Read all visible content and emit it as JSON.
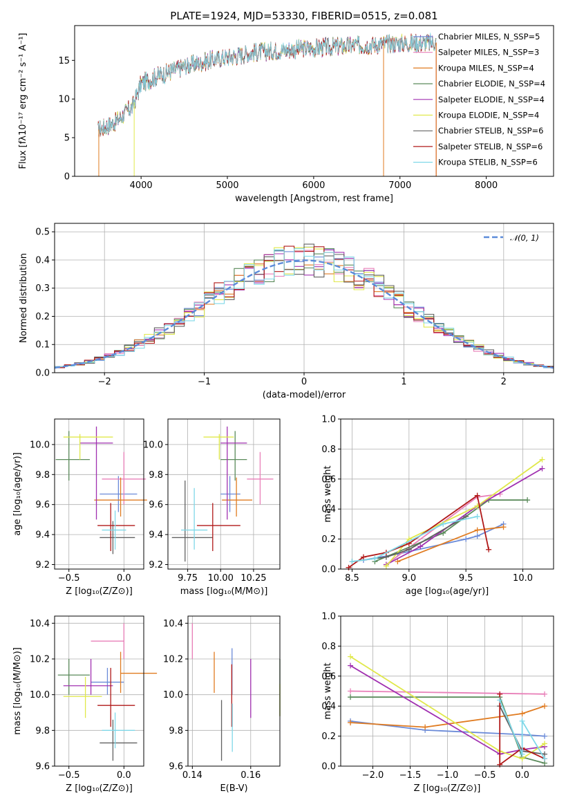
{
  "title": "PLATE=1924, MJD=53330, FIBERID=0515, z=0.081",
  "colors": {
    "c_miles": "#6a8ad8",
    "s_miles": "#e87fb8",
    "k_miles": "#e07b20",
    "c_elodie": "#5a8a5a",
    "s_elodie": "#a030b0",
    "k_elodie": "#e0e84a",
    "c_stelib": "#606060",
    "s_stelib": "#b01818",
    "k_stelib": "#7fd8e8",
    "normal": "#5b8bd9"
  },
  "chart_data": [
    {
      "id": "spectrum",
      "type": "line",
      "title": "PLATE=1924, MJD=53330, FIBERID=0515, z=0.081",
      "xlabel": "wavelength [Angstrom, rest frame]",
      "ylabel": "Flux [fλ10⁻¹⁷ erg cm⁻² s⁻¹ A⁻¹]",
      "xlim": [
        3230,
        8780
      ],
      "ylim": [
        0,
        19.5
      ],
      "xticks": [
        "4000",
        "5000",
        "6000",
        "7000",
        "8000"
      ],
      "yticks": [
        "0",
        "5",
        "10",
        "15"
      ],
      "grid": false,
      "legend_position": "top-right",
      "series": [
        {
          "name": "Chabrier MILES, N_SSP=5",
          "color_key": "c_miles"
        },
        {
          "name": "Salpeter MILES, N_SSP=3",
          "color_key": "s_miles"
        },
        {
          "name": "Kroupa MILES, N_SSP=4",
          "color_key": "k_miles"
        },
        {
          "name": "Chabrier ELODIE, N_SSP=4",
          "color_key": "c_elodie"
        },
        {
          "name": "Salpeter ELODIE, N_SSP=4",
          "color_key": "s_elodie"
        },
        {
          "name": "Kroupa ELODIE, N_SSP=4",
          "color_key": "k_elodie"
        },
        {
          "name": "Chabrier STELIB, N_SSP=6",
          "color_key": "c_stelib"
        },
        {
          "name": "Salpeter STELIB, N_SSP=6",
          "color_key": "s_stelib"
        },
        {
          "name": "Kroupa STELIB, N_SSP=6",
          "color_key": "k_stelib"
        }
      ],
      "continuum": {
        "x": [
          3500,
          3700,
          3900,
          4000,
          4200,
          4500,
          4800,
          5000,
          5300,
          5600,
          6000,
          6300,
          6600,
          7000,
          7400,
          7700
        ],
        "y": [
          6.0,
          7.0,
          9.0,
          12.0,
          13.0,
          14.2,
          15.0,
          15.4,
          16.0,
          16.3,
          16.6,
          16.8,
          17.0,
          17.2,
          17.3,
          17.3
        ]
      }
    },
    {
      "id": "residual-histogram",
      "type": "bar",
      "xlabel": "(data-model)/error",
      "ylabel": "Normed distribution",
      "xlim": [
        -2.5,
        2.5
      ],
      "ylim": [
        0,
        0.53
      ],
      "xticks": [
        "−2",
        "−1",
        "0",
        "1",
        "2"
      ],
      "yticks": [
        "0.0",
        "0.1",
        "0.2",
        "0.3",
        "0.4",
        "0.5"
      ],
      "grid": true,
      "legend_position": "top-right",
      "legend": "𝒩(0, 1)",
      "bin_width": 0.1
    },
    {
      "id": "age-vs-metallicity",
      "type": "scatter",
      "xlabel": "Z [log₁₀(Z/Z⊙)]",
      "ylabel": "age  [log₁₀(age/yr)]",
      "xlim": [
        -0.63,
        0.18
      ],
      "ylim": [
        9.17,
        10.17
      ],
      "xticks": [
        "−0.5",
        "0.0"
      ],
      "yticks": [
        "9.2",
        "9.4",
        "9.6",
        "9.8",
        "10.0"
      ],
      "grid": true,
      "points": [
        {
          "color_key": "c_miles",
          "x": -0.05,
          "y": 9.67,
          "xlo": -0.22,
          "xhi": 0.12,
          "ylo": 9.55,
          "yhi": 9.79
        },
        {
          "color_key": "s_miles",
          "x": 0.0,
          "y": 9.77,
          "xlo": -0.2,
          "xhi": 0.2,
          "ylo": 9.6,
          "yhi": 9.95
        },
        {
          "color_key": "k_miles",
          "x": -0.03,
          "y": 9.63,
          "xlo": -0.27,
          "xhi": 0.21,
          "ylo": 9.52,
          "yhi": 9.78
        },
        {
          "color_key": "c_elodie",
          "x": -0.5,
          "y": 9.9,
          "xlo": -0.62,
          "xhi": -0.31,
          "ylo": 9.76,
          "yhi": 10.09
        },
        {
          "color_key": "s_elodie",
          "x": -0.25,
          "y": 10.01,
          "xlo": -0.4,
          "xhi": -0.1,
          "ylo": 9.5,
          "yhi": 10.12
        },
        {
          "color_key": "k_elodie",
          "x": -0.4,
          "y": 10.05,
          "xlo": -0.55,
          "xhi": -0.1,
          "ylo": 9.9,
          "yhi": 10.07
        },
        {
          "color_key": "c_stelib",
          "x": -0.1,
          "y": 9.38,
          "xlo": -0.22,
          "xhi": 0.1,
          "ylo": 9.27,
          "yhi": 9.49
        },
        {
          "color_key": "s_stelib",
          "x": -0.12,
          "y": 9.46,
          "xlo": -0.24,
          "xhi": 0.1,
          "ylo": 9.29,
          "yhi": 9.61
        },
        {
          "color_key": "k_stelib",
          "x": -0.08,
          "y": 9.43,
          "xlo": -0.2,
          "xhi": 0.02,
          "ylo": 9.3,
          "yhi": 9.56
        }
      ]
    },
    {
      "id": "age-vs-mass",
      "type": "scatter",
      "xlabel": "mass [log₁₀(M/M⊙)]",
      "ylabel": "",
      "xlim": [
        9.6,
        10.45
      ],
      "ylim": [
        9.17,
        10.17
      ],
      "xticks": [
        "9.75",
        "10.00",
        "10.25"
      ],
      "yticks": [
        "9.2",
        "9.4",
        "9.6",
        "9.8",
        "10.0"
      ],
      "grid": true,
      "points": [
        {
          "color_key": "c_miles",
          "x": 10.07,
          "y": 9.67,
          "xlo": 10.0,
          "xhi": 10.15,
          "ylo": 9.55,
          "yhi": 9.79
        },
        {
          "color_key": "s_miles",
          "x": 10.3,
          "y": 9.77,
          "xlo": 10.2,
          "xhi": 10.4,
          "ylo": 9.6,
          "yhi": 9.95
        },
        {
          "color_key": "k_miles",
          "x": 10.12,
          "y": 9.63,
          "xlo": 10.01,
          "xhi": 10.24,
          "ylo": 9.52,
          "yhi": 9.78
        },
        {
          "color_key": "c_elodie",
          "x": 10.11,
          "y": 9.9,
          "xlo": 10.0,
          "xhi": 10.2,
          "ylo": 9.76,
          "yhi": 10.09
        },
        {
          "color_key": "s_elodie",
          "x": 10.05,
          "y": 10.01,
          "xlo": 10.0,
          "xhi": 10.2,
          "ylo": 9.5,
          "yhi": 10.12
        },
        {
          "color_key": "k_elodie",
          "x": 9.99,
          "y": 10.05,
          "xlo": 9.87,
          "xhi": 10.1,
          "ylo": 9.9,
          "yhi": 10.07
        },
        {
          "color_key": "c_stelib",
          "x": 9.73,
          "y": 9.38,
          "xlo": 9.63,
          "xhi": 9.94,
          "ylo": 9.22,
          "yhi": 9.76
        },
        {
          "color_key": "s_stelib",
          "x": 9.94,
          "y": 9.46,
          "xlo": 9.82,
          "xhi": 10.15,
          "ylo": 9.29,
          "yhi": 9.61
        },
        {
          "color_key": "k_stelib",
          "x": 9.8,
          "y": 9.43,
          "xlo": 9.7,
          "xhi": 9.9,
          "ylo": 9.3,
          "yhi": 9.71
        }
      ]
    },
    {
      "id": "mass-weight-vs-age",
      "type": "line",
      "xlabel": "age  [log₁₀(age/yr)]",
      "ylabel": "mass weight",
      "xlim": [
        8.4,
        10.27
      ],
      "ylim": [
        0,
        1
      ],
      "xticks": [
        "8.5",
        "9.0",
        "9.5",
        "10.0"
      ],
      "yticks": [
        "0.0",
        "0.2",
        "0.4",
        "0.6",
        "0.8",
        "1.0"
      ],
      "grid": true,
      "series": [
        {
          "color_key": "c_miles",
          "x": [
            8.6,
            8.9,
            9.5,
            9.6,
            9.83
          ],
          "y": [
            0.06,
            0.1,
            0.2,
            0.22,
            0.3
          ]
        },
        {
          "color_key": "s_miles",
          "x": [
            8.8,
            9.6,
            9.8
          ],
          "y": [
            0.03,
            0.48,
            0.5
          ]
        },
        {
          "color_key": "k_miles",
          "x": [
            8.9,
            9.6,
            9.83
          ],
          "y": [
            0.05,
            0.26,
            0.28
          ]
        },
        {
          "color_key": "c_elodie",
          "x": [
            8.7,
            9.3,
            9.7,
            10.04
          ],
          "y": [
            0.05,
            0.24,
            0.46,
            0.46
          ]
        },
        {
          "color_key": "s_elodie",
          "x": [
            8.8,
            9.1,
            9.6,
            10.17
          ],
          "y": [
            0.03,
            0.15,
            0.42,
            0.67
          ]
        },
        {
          "color_key": "k_elodie",
          "x": [
            8.8,
            9.0,
            9.6,
            10.17
          ],
          "y": [
            0.02,
            0.2,
            0.42,
            0.73
          ]
        },
        {
          "color_key": "c_stelib",
          "x": [
            8.5,
            8.8,
            9.0,
            9.5
          ],
          "y": [
            0.05,
            0.08,
            0.13,
            0.35
          ]
        },
        {
          "color_key": "s_stelib",
          "x": [
            8.47,
            8.6,
            8.8,
            9.0,
            9.6,
            9.7
          ],
          "y": [
            0.01,
            0.08,
            0.11,
            0.17,
            0.49,
            0.13
          ]
        },
        {
          "color_key": "k_stelib",
          "x": [
            8.5,
            8.7,
            9.3,
            9.6
          ],
          "y": [
            0.05,
            0.07,
            0.3,
            0.35
          ]
        }
      ]
    },
    {
      "id": "mass-vs-metallicity",
      "type": "scatter",
      "xlabel": "Z [log₁₀(Z/Z⊙)]",
      "ylabel": "mass [log₁₀(M/M⊙)]",
      "xlim": [
        -0.63,
        0.18
      ],
      "ylim": [
        9.6,
        10.44
      ],
      "xticks": [
        "−0.5",
        "0.0"
      ],
      "yticks": [
        "9.6",
        "9.8",
        "10.0",
        "10.2",
        "10.4"
      ],
      "grid": true,
      "points": [
        {
          "color_key": "c_miles",
          "x": -0.15,
          "y": 10.07,
          "xlo": -0.3,
          "xhi": 0.0,
          "ylo": 10.0,
          "yhi": 10.15
        },
        {
          "color_key": "s_miles",
          "x": 0.0,
          "y": 10.3,
          "xlo": -0.3,
          "xhi": 0.0,
          "ylo": 10.2,
          "yhi": 10.4
        },
        {
          "color_key": "k_miles",
          "x": -0.03,
          "y": 10.12,
          "xlo": -0.03,
          "xhi": 0.3,
          "ylo": 10.01,
          "yhi": 10.24
        },
        {
          "color_key": "c_elodie",
          "x": -0.5,
          "y": 10.11,
          "xlo": -0.6,
          "xhi": -0.31,
          "ylo": 10.0,
          "yhi": 10.2
        },
        {
          "color_key": "s_elodie",
          "x": -0.3,
          "y": 10.05,
          "xlo": -0.55,
          "xhi": -0.1,
          "ylo": 10.0,
          "yhi": 10.2
        },
        {
          "color_key": "k_elodie",
          "x": -0.35,
          "y": 9.99,
          "xlo": -0.55,
          "xhi": -0.2,
          "ylo": 9.87,
          "yhi": 10.1
        },
        {
          "color_key": "c_stelib",
          "x": -0.1,
          "y": 9.73,
          "xlo": -0.22,
          "xhi": 0.12,
          "ylo": 9.63,
          "yhi": 9.86
        },
        {
          "color_key": "s_stelib",
          "x": -0.12,
          "y": 9.94,
          "xlo": -0.24,
          "xhi": 0.1,
          "ylo": 9.82,
          "yhi": 10.15
        },
        {
          "color_key": "k_stelib",
          "x": -0.08,
          "y": 9.8,
          "xlo": -0.2,
          "xhi": 0.1,
          "ylo": 9.7,
          "yhi": 9.9
        }
      ]
    },
    {
      "id": "mass-vs-extinction",
      "type": "scatter",
      "xlabel": "E(B-V)",
      "ylabel": "",
      "xlim": [
        0.1385,
        0.17
      ],
      "ylim": [
        9.6,
        10.44
      ],
      "xticks": [
        "0.14",
        "0.16"
      ],
      "yticks": [
        "9.6",
        "9.8",
        "10.0",
        "10.2",
        "10.4"
      ],
      "grid": true,
      "points": [
        {
          "color_key": "c_miles",
          "x": 0.1536,
          "y": 10.07,
          "ylo": 10.0,
          "yhi": 10.26
        },
        {
          "color_key": "s_miles",
          "x": 0.14,
          "y": 10.3,
          "ylo": 10.2,
          "yhi": 10.4
        },
        {
          "color_key": "k_miles",
          "x": 0.1475,
          "y": 10.12,
          "ylo": 10.01,
          "yhi": 10.24
        },
        {
          "color_key": "c_elodie",
          "x": 0.17,
          "y": 9.97,
          "ylo": 9.88,
          "yhi": 10.2
        },
        {
          "color_key": "s_elodie",
          "x": 0.16,
          "y": 9.97,
          "ylo": 9.87,
          "yhi": 10.2
        },
        {
          "color_key": "k_elodie",
          "x": 0.17,
          "y": 9.97,
          "ylo": 9.88,
          "yhi": 10.06
        },
        {
          "color_key": "c_stelib",
          "x": 0.15,
          "y": 9.8,
          "ylo": 9.63,
          "yhi": 9.97
        },
        {
          "color_key": "s_stelib",
          "x": 0.1535,
          "y": 9.94,
          "ylo": 9.82,
          "yhi": 10.17
        },
        {
          "color_key": "k_stelib",
          "x": 0.1537,
          "y": 9.9,
          "ylo": 9.68,
          "yhi": 9.95
        }
      ]
    },
    {
      "id": "mass-weight-vs-metallicity",
      "type": "line",
      "xlabel": "Z [log₁₀(Z/Z⊙)]",
      "ylabel": "mass weight",
      "xlim": [
        -2.43,
        0.42
      ],
      "ylim": [
        0,
        1
      ],
      "xticks": [
        "−2.0",
        "−1.5",
        "−1.0",
        "−0.5",
        "0.0"
      ],
      "yticks": [
        "0.0",
        "0.2",
        "0.4",
        "0.6",
        "0.8",
        "1.0"
      ],
      "grid": true,
      "series": [
        {
          "color_key": "c_miles",
          "x": [
            -2.3,
            -1.3,
            0.0,
            0.3
          ],
          "y": [
            0.3,
            0.24,
            0.21,
            0.2
          ]
        },
        {
          "color_key": "s_miles",
          "x": [
            -2.3,
            0.3
          ],
          "y": [
            0.5,
            0.48
          ]
        },
        {
          "color_key": "k_miles",
          "x": [
            -2.3,
            -1.3,
            0.0,
            0.3
          ],
          "y": [
            0.29,
            0.26,
            0.35,
            0.4
          ]
        },
        {
          "color_key": "c_elodie",
          "x": [
            -2.3,
            -0.3,
            0.0,
            0.3
          ],
          "y": [
            0.46,
            0.46,
            0.06,
            0.02
          ]
        },
        {
          "color_key": "s_elodie",
          "x": [
            -2.3,
            -0.3,
            0.0,
            0.3
          ],
          "y": [
            0.67,
            0.08,
            0.11,
            0.13
          ]
        },
        {
          "color_key": "k_elodie",
          "x": [
            -2.3,
            -0.3,
            0.0,
            0.3
          ],
          "y": [
            0.73,
            0.1,
            0.05,
            0.15
          ]
        },
        {
          "color_key": "c_stelib",
          "x": [
            -0.3,
            0.0,
            0.3
          ],
          "y": [
            0.4,
            0.1,
            0.08
          ]
        },
        {
          "color_key": "s_stelib",
          "x": [
            -0.3,
            -0.3,
            0.0,
            0.3
          ],
          "y": [
            0.48,
            0.01,
            0.12,
            0.05
          ]
        },
        {
          "color_key": "k_stelib",
          "x": [
            -0.3,
            0.0,
            0.0,
            0.3
          ],
          "y": [
            0.44,
            0.08,
            0.3,
            0.05
          ]
        }
      ]
    }
  ]
}
